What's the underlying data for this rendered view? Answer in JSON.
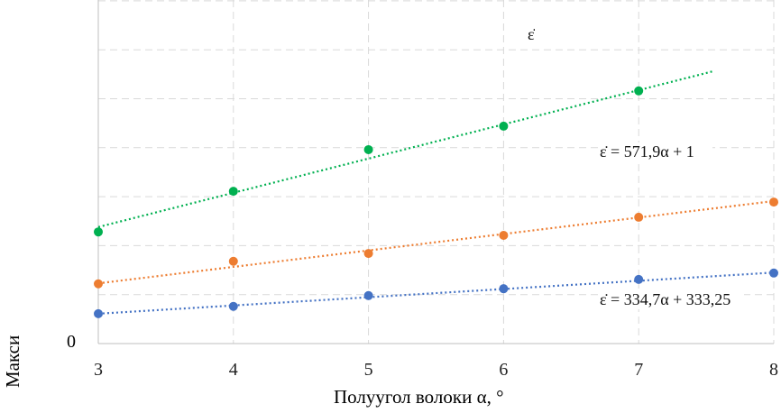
{
  "chart_data": {
    "type": "scatter",
    "title": "",
    "xlabel": "Полуугол волоки α, °",
    "ylabel": "Макси",
    "xlim": [
      3,
      8
    ],
    "ylim": [
      0,
      7
    ],
    "x_ticks": [
      "3",
      "4",
      "5",
      "6",
      "7",
      "8"
    ],
    "y_ticks": [
      "0"
    ],
    "grid": true,
    "series": [
      {
        "name": "blue",
        "color": "#4472c4",
        "x": [
          3,
          4,
          5,
          6,
          7,
          8
        ],
        "y": [
          0.61,
          0.76,
          0.98,
          1.12,
          1.31,
          1.44
        ],
        "trend": [
          [
            3,
            0.61
          ],
          [
            8,
            1.45
          ]
        ]
      },
      {
        "name": "orange",
        "color": "#ed7d31",
        "x": [
          3,
          4,
          5,
          6,
          7,
          8
        ],
        "y": [
          1.22,
          1.68,
          1.84,
          2.21,
          2.58,
          2.89
        ],
        "trend": [
          [
            3,
            1.23
          ],
          [
            8,
            2.91
          ]
        ]
      },
      {
        "name": "green",
        "color": "#00b050",
        "x": [
          3,
          4,
          5,
          6,
          7
        ],
        "y": [
          2.28,
          3.11,
          3.96,
          4.44,
          5.16
        ],
        "trend": [
          [
            3,
            2.38
          ],
          [
            7.55,
            5.56
          ]
        ]
      }
    ],
    "annotations": [
      "ε̇",
      "ε̇ = 571,9α + 1",
      "ε̇ = 334,7α + 333,25"
    ]
  }
}
